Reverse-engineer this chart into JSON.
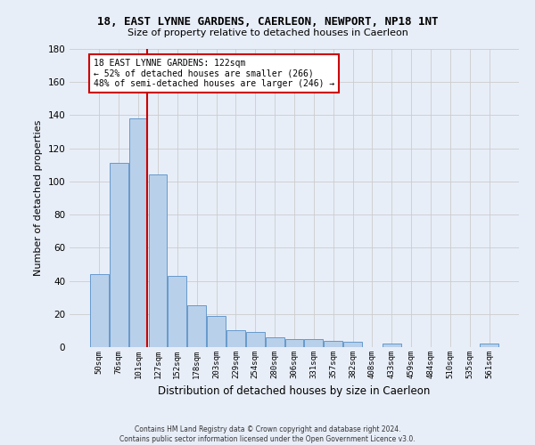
{
  "title": "18, EAST LYNNE GARDENS, CAERLEON, NEWPORT, NP18 1NT",
  "subtitle": "Size of property relative to detached houses in Caerleon",
  "xlabel": "Distribution of detached houses by size in Caerleon",
  "ylabel": "Number of detached properties",
  "bar_values": [
    44,
    111,
    138,
    104,
    43,
    25,
    19,
    10,
    9,
    6,
    5,
    5,
    4,
    3,
    0,
    2,
    0,
    0,
    0,
    0,
    2
  ],
  "bin_labels": [
    "50sqm",
    "76sqm",
    "101sqm",
    "127sqm",
    "152sqm",
    "178sqm",
    "203sqm",
    "229sqm",
    "254sqm",
    "280sqm",
    "306sqm",
    "331sqm",
    "357sqm",
    "382sqm",
    "408sqm",
    "433sqm",
    "459sqm",
    "484sqm",
    "510sqm",
    "535sqm",
    "561sqm"
  ],
  "bar_color": "#b8d0ea",
  "bar_edge_color": "#6699cc",
  "grid_color": "#cccccc",
  "vline_x_index": 2,
  "vline_color": "#cc0000",
  "annotation_text": "18 EAST LYNNE GARDENS: 122sqm\n← 52% of detached houses are smaller (266)\n48% of semi-detached houses are larger (246) →",
  "annotation_box_color": "#ffffff",
  "annotation_box_edge": "#cc0000",
  "ylim": [
    0,
    180
  ],
  "yticks": [
    0,
    20,
    40,
    60,
    80,
    100,
    120,
    140,
    160,
    180
  ],
  "footer_text": "Contains HM Land Registry data © Crown copyright and database right 2024.\nContains public sector information licensed under the Open Government Licence v3.0.",
  "bg_color": "#e8eef8"
}
